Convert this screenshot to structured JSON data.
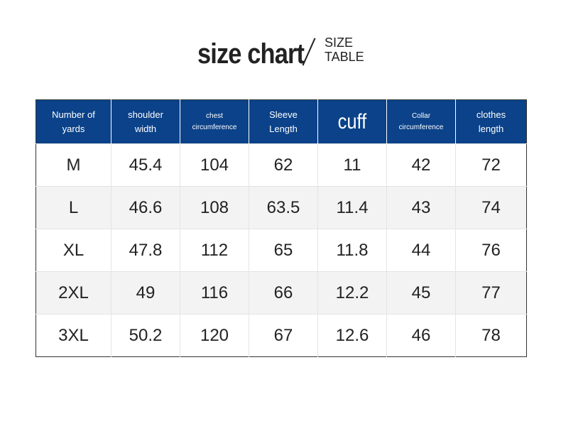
{
  "title": {
    "main": "size chart",
    "sub_line1": "SIZE",
    "sub_line2": "TABLE"
  },
  "colors": {
    "header_bg": "#0b4289",
    "header_text": "#ffffff",
    "row_shade": "#f3f3f3",
    "text": "#222222"
  },
  "table": {
    "headers": [
      {
        "line1": "Number of",
        "line2": "yards"
      },
      {
        "line1": "shoulder",
        "line2": "width"
      },
      {
        "line1": "chest",
        "line2": "circumference"
      },
      {
        "line1": "Sleeve",
        "line2": "Length"
      },
      {
        "line1": "cuff",
        "line2": ""
      },
      {
        "line1": "Collar",
        "line2": "circumference"
      },
      {
        "line1": "clothes",
        "line2": "length"
      }
    ],
    "rows": [
      [
        "M",
        "45.4",
        "104",
        "62",
        "11",
        "42",
        "72"
      ],
      [
        "L",
        "46.6",
        "108",
        "63.5",
        "11.4",
        "43",
        "74"
      ],
      [
        "XL",
        "47.8",
        "112",
        "65",
        "11.8",
        "44",
        "76"
      ],
      [
        "2XL",
        "49",
        "116",
        "66",
        "12.2",
        "45",
        "77"
      ],
      [
        "3XL",
        "50.2",
        "120",
        "67",
        "12.6",
        "46",
        "78"
      ]
    ]
  }
}
